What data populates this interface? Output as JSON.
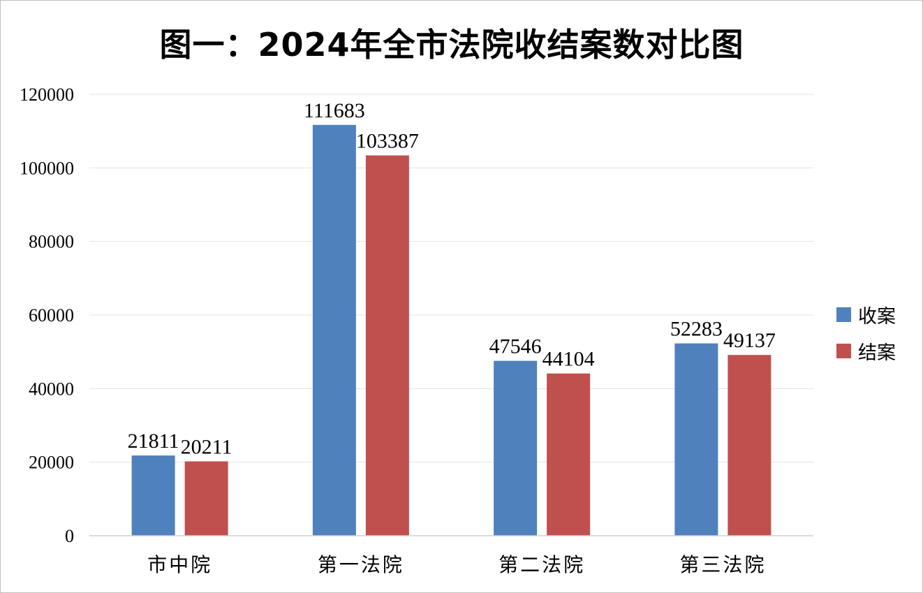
{
  "chart_data": {
    "type": "bar",
    "title": "图一：2024年全市法院收结案数对比图",
    "categories": [
      "市中院",
      "第一法院",
      "第二法院",
      "第三法院"
    ],
    "series": [
      {
        "name": "收案",
        "color": "#4f81bd",
        "values": [
          21811,
          111683,
          47546,
          52283
        ]
      },
      {
        "name": "结案",
        "color": "#c0504d",
        "values": [
          20211,
          103387,
          44104,
          49137
        ]
      }
    ],
    "xlabel": "",
    "ylabel": "",
    "ylim": [
      0,
      120000
    ],
    "yticks": [
      0,
      20000,
      40000,
      60000,
      80000,
      100000,
      120000
    ],
    "grid": true,
    "legend": "right",
    "data_labels": true
  }
}
